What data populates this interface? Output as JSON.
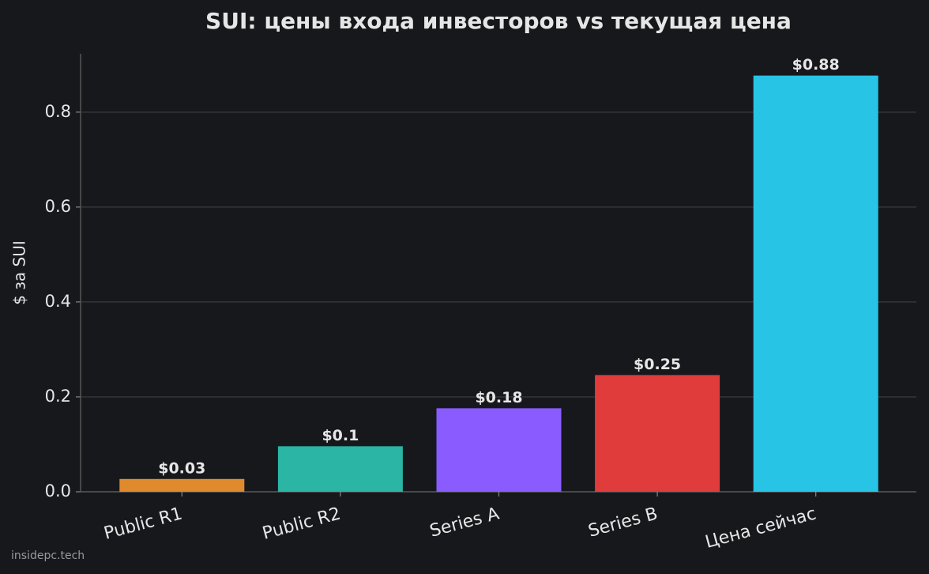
{
  "chart_data": {
    "type": "bar",
    "title": "SUI: цены входа инвесторов vs текущая цена",
    "y_label": "$ за SUI",
    "categories": [
      "Public R1",
      "Public R2",
      "Series A",
      "Series B",
      "Цена сейчас"
    ],
    "values": [
      0.027,
      0.096,
      0.176,
      0.246,
      0.877
    ],
    "value_labels": [
      "$0.03",
      "$0.1",
      "$0.18",
      "$0.25",
      "$0.88"
    ],
    "colors": [
      "#e08a2e",
      "#2ab5a5",
      "#8a5cff",
      "#e03c3c",
      "#27c4e6"
    ],
    "ylim": [
      0,
      0.923
    ],
    "yticks": [
      {
        "value": 0,
        "label": "0.0"
      },
      0.2,
      0.4,
      0.6,
      0.8
    ],
    "grid": true
  },
  "watermark": "insidepc.tech"
}
